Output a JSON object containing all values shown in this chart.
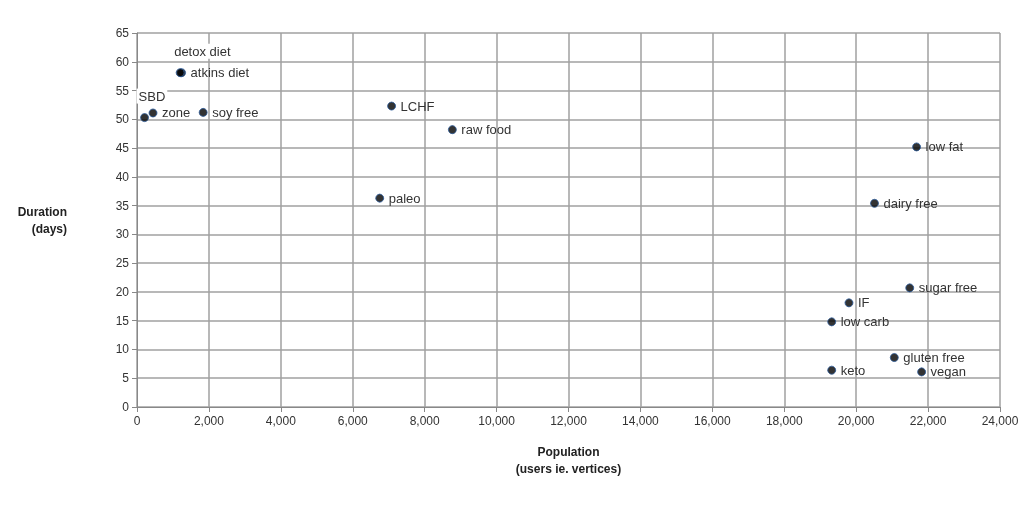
{
  "chart_data": {
    "type": "scatter",
    "xlabel": "Population\n(users ie. vertices)",
    "ylabel": "Duration\n(days)",
    "x": [
      1240,
      1200,
      445,
      210,
      1840,
      7080,
      8770,
      6750,
      21680,
      20510,
      21490,
      19800,
      19320,
      21060,
      19320,
      21820
    ],
    "values": [
      58.1,
      58.1,
      51.1,
      50.3,
      51.2,
      52.3,
      48.2,
      36.3,
      45.2,
      35.4,
      20.7,
      18.1,
      14.8,
      8.6,
      6.4,
      6.1
    ],
    "color": "#000000",
    "marker": "circle",
    "annotations": [
      {
        "text": "atkins diet",
        "x": 1240,
        "y": 58.1
      },
      {
        "text": "detox diet",
        "x": 1200,
        "y": 58.1
      },
      {
        "text": "zone",
        "x": 445,
        "y": 51.1
      },
      {
        "text": "SBD",
        "x": 210,
        "y": 50.3
      },
      {
        "text": "soy free",
        "x": 1840,
        "y": 51.2
      },
      {
        "text": "LCHF",
        "x": 7080,
        "y": 52.3
      },
      {
        "text": "raw food",
        "x": 8770,
        "y": 48.2
      },
      {
        "text": "paleo",
        "x": 6750,
        "y": 36.3
      },
      {
        "text": "low fat",
        "x": 21680,
        "y": 45.2
      },
      {
        "text": "dairy free",
        "x": 20510,
        "y": 35.4
      },
      {
        "text": "sugar free",
        "x": 21490,
        "y": 20.7
      },
      {
        "text": "IF",
        "x": 19800,
        "y": 18.1
      },
      {
        "text": "low carb",
        "x": 19320,
        "y": 14.8
      },
      {
        "text": "gluten free",
        "x": 21060,
        "y": 8.6
      },
      {
        "text": "keto",
        "x": 19320,
        "y": 6.4
      },
      {
        "text": "vegan",
        "x": 21820,
        "y": 6.1
      }
    ],
    "xlim": [
      0,
      24000
    ],
    "xticks": [
      0,
      {
        "value": 2000,
        "label": "2,000"
      },
      {
        "value": 4000,
        "label": "4,000"
      },
      {
        "value": 6000,
        "label": "6,000"
      },
      {
        "value": 8000,
        "label": "8,000"
      },
      {
        "value": 10000,
        "label": "10,000"
      },
      {
        "value": 12000,
        "label": "12,000"
      },
      {
        "value": 14000,
        "label": "14,000"
      },
      {
        "value": 16000,
        "label": "16,000"
      },
      {
        "value": 18000,
        "label": "18,000"
      },
      {
        "value": 20000,
        "label": "20,000"
      },
      {
        "value": 22000,
        "label": "22,000"
      },
      {
        "value": 24000,
        "label": "24,000"
      }
    ],
    "ylim": [
      0,
      65
    ],
    "yticks": [
      0,
      5,
      10,
      15,
      20,
      25,
      30,
      35,
      40,
      45,
      50,
      55,
      60,
      65
    ],
    "grid": true
  }
}
